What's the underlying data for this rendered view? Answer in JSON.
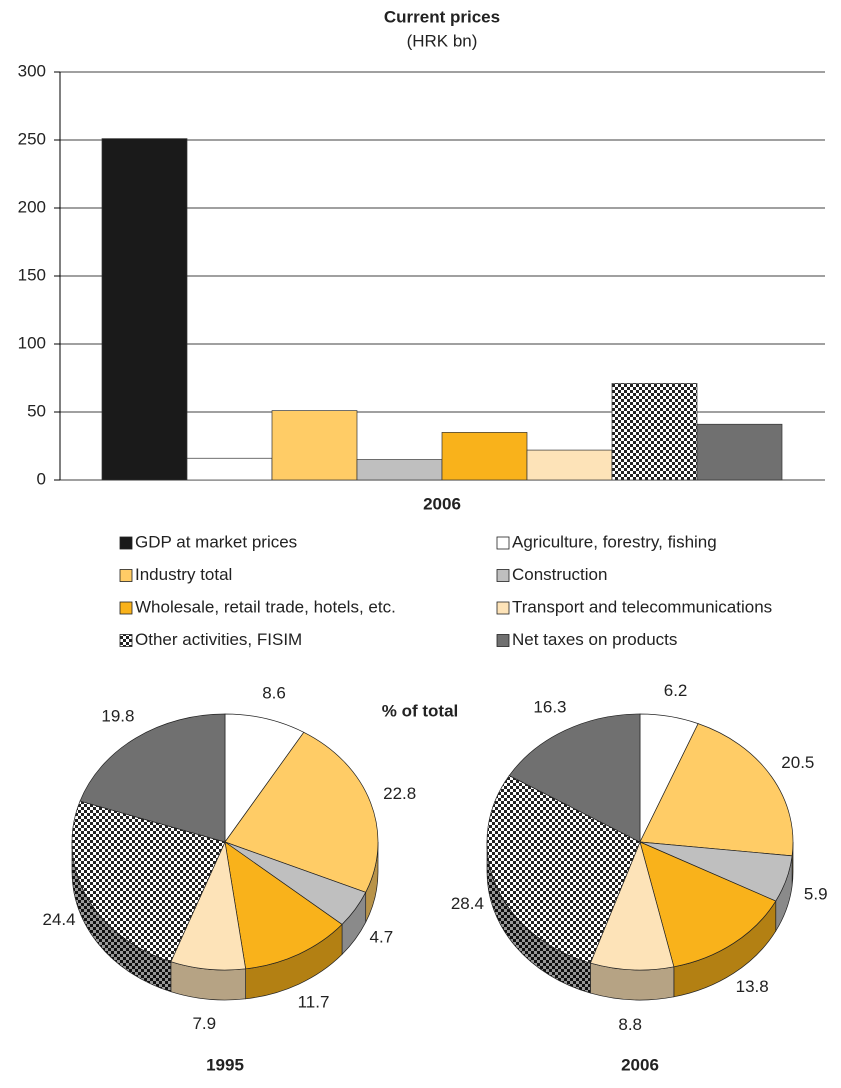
{
  "chart_data": [
    {
      "type": "bar",
      "title": "Current prices",
      "subtitle": "(HRK bn)",
      "xlabel": "2006",
      "ylim": [
        0,
        300
      ],
      "yticks": [
        0,
        50,
        100,
        150,
        200,
        250,
        300
      ],
      "grid": true,
      "series": [
        {
          "name": "GDP at market prices",
          "color": "#1a1a1a",
          "values": [
            251
          ]
        },
        {
          "name": "Agriculture, forestry, fishing",
          "color": "#ffffff",
          "values": [
            16
          ]
        },
        {
          "name": "Industry total",
          "color": "#ffcc66",
          "values": [
            51
          ]
        },
        {
          "name": "Construction",
          "color": "#bfbfbf",
          "values": [
            15
          ]
        },
        {
          "name": "Wholesale, retail trade, hotels, etc.",
          "color": "#f9b21b",
          "values": [
            35
          ]
        },
        {
          "name": "Transport and telecommunications",
          "color": "#fde3b8",
          "values": [
            22
          ]
        },
        {
          "name": "Other activities, FISIM",
          "color": "checker",
          "values": [
            71
          ]
        },
        {
          "name": "Net taxes on products",
          "color": "#707070",
          "values": [
            41
          ]
        }
      ]
    },
    {
      "type": "pie",
      "title": "% of total",
      "colors": [
        "#ffffff",
        "#ffcc66",
        "#bfbfbf",
        "#f9b21b",
        "#fde3b8",
        "checker",
        "#707070"
      ],
      "pies": [
        {
          "name": "1995",
          "values": [
            8.6,
            22.8,
            4.7,
            11.7,
            7.9,
            24.4,
            19.8
          ]
        },
        {
          "name": "2006",
          "values": [
            6.2,
            20.5,
            5.9,
            13.8,
            8.8,
            28.4,
            16.3
          ]
        }
      ]
    }
  ]
}
